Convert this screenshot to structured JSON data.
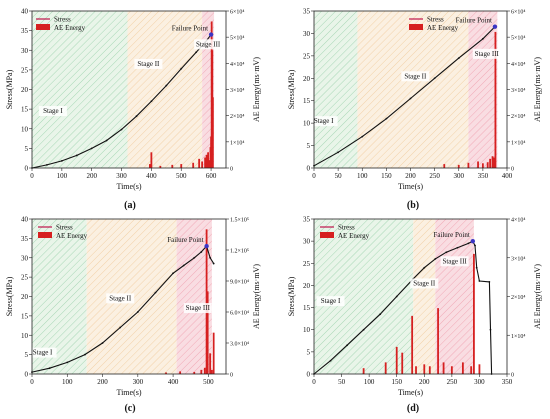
{
  "chart_data": [
    {
      "panel": "(a)",
      "type": "line",
      "xlabel": "Time(s)",
      "ylabel": "Stress(MPa)",
      "y2label": "AE Energy(ms·mV)",
      "xlim": [
        0,
        650
      ],
      "ylim": [
        0,
        40
      ],
      "y2lim": [
        0,
        60000
      ],
      "xticks": [
        0,
        100,
        200,
        300,
        400,
        500,
        600
      ],
      "yticks": [
        0,
        5,
        10,
        15,
        20,
        25,
        30,
        35,
        40
      ],
      "y2ticks": [
        {
          "v": 0,
          "t": "0"
        },
        {
          "v": 10000,
          "t": "1×10⁴"
        },
        {
          "v": 20000,
          "t": "2×10⁴"
        },
        {
          "v": 30000,
          "t": "3×10⁴"
        },
        {
          "v": 40000,
          "t": "4×10⁴"
        },
        {
          "v": 50000,
          "t": "5×10⁴"
        },
        {
          "v": 60000,
          "t": "6×10⁴"
        }
      ],
      "legend": [
        "Stress",
        "AE Energy"
      ],
      "stages": [
        {
          "label": "Stage I",
          "from": 0,
          "to": 320,
          "color": "green",
          "lx": 70,
          "ly": 14
        },
        {
          "label": "Stage II",
          "from": 320,
          "to": 570,
          "color": "orange",
          "lx": 390,
          "ly": 26
        },
        {
          "label": "Stage III",
          "from": 570,
          "to": 610,
          "color": "red",
          "lx": 590,
          "ly": 31
        }
      ],
      "failure": {
        "label": "Failure Point",
        "x": 600,
        "y": 34
      },
      "stress": [
        [
          0,
          0
        ],
        [
          50,
          0.8
        ],
        [
          100,
          1.8
        ],
        [
          150,
          3.2
        ],
        [
          200,
          5
        ],
        [
          250,
          7
        ],
        [
          300,
          9.8
        ],
        [
          350,
          13.2
        ],
        [
          400,
          17
        ],
        [
          450,
          21
        ],
        [
          500,
          25.3
        ],
        [
          550,
          29.5
        ],
        [
          580,
          32
        ],
        [
          600,
          34
        ]
      ],
      "energy": [
        [
          395,
          1500
        ],
        [
          400,
          6000
        ],
        [
          430,
          800
        ],
        [
          470,
          1200
        ],
        [
          500,
          1500
        ],
        [
          540,
          2000
        ],
        [
          560,
          3500
        ],
        [
          570,
          2500
        ],
        [
          580,
          4000
        ],
        [
          585,
          5000
        ],
        [
          590,
          6000
        ],
        [
          595,
          3000
        ],
        [
          598,
          8000
        ],
        [
          600,
          12000
        ],
        [
          602,
          56000
        ],
        [
          604,
          45000
        ],
        [
          606,
          27000
        ]
      ]
    },
    {
      "panel": "(b)",
      "type": "line",
      "xlabel": "Time(s)",
      "ylabel": "Stress(MPa)",
      "y2label": "AE Energy(ms·mV)",
      "xlim": [
        0,
        400
      ],
      "ylim": [
        0,
        35
      ],
      "y2lim": [
        0,
        60000
      ],
      "xticks": [
        0,
        50,
        100,
        150,
        200,
        250,
        300,
        350,
        400
      ],
      "yticks": [
        0,
        5,
        10,
        15,
        20,
        25,
        30,
        35
      ],
      "y2ticks": [
        {
          "v": 0,
          "t": "0"
        },
        {
          "v": 10000,
          "t": "1×10⁴"
        },
        {
          "v": 20000,
          "t": "2×10⁴"
        },
        {
          "v": 30000,
          "t": "3×10⁴"
        },
        {
          "v": 40000,
          "t": "4×10⁴"
        },
        {
          "v": 50000,
          "t": "5×10⁴"
        },
        {
          "v": 60000,
          "t": "6×10⁴"
        }
      ],
      "legend": [
        "Stress",
        "AE Energy"
      ],
      "stages": [
        {
          "label": "Stage I",
          "from": 0,
          "to": 90,
          "color": "green",
          "lx": 20,
          "ly": 10
        },
        {
          "label": "Stage II",
          "from": 90,
          "to": 320,
          "color": "orange",
          "lx": 210,
          "ly": 20
        },
        {
          "label": "Stage III",
          "from": 320,
          "to": 380,
          "color": "red",
          "lx": 358,
          "ly": 25
        }
      ],
      "failure": {
        "label": "Failure Point",
        "x": 375,
        "y": 31.5
      },
      "stress": [
        [
          0,
          0.5
        ],
        [
          50,
          3.5
        ],
        [
          100,
          7
        ],
        [
          150,
          11
        ],
        [
          200,
          15.5
        ],
        [
          250,
          20
        ],
        [
          300,
          24.5
        ],
        [
          350,
          28.8
        ],
        [
          375,
          31.5
        ]
      ],
      "energy": [
        [
          270,
          1500
        ],
        [
          300,
          1200
        ],
        [
          320,
          2000
        ],
        [
          340,
          2500
        ],
        [
          350,
          1800
        ],
        [
          360,
          2200
        ],
        [
          365,
          3500
        ],
        [
          370,
          4500
        ],
        [
          373,
          4000
        ],
        [
          376,
          52000
        ]
      ]
    },
    {
      "panel": "(c)",
      "type": "line",
      "xlabel": "Time(s)",
      "ylabel": "Stress(MPa)",
      "y2label": "AE Energy(ms·mV)",
      "xlim": [
        0,
        550
      ],
      "ylim": [
        0,
        40
      ],
      "y2lim": [
        0,
        150000
      ],
      "xticks": [
        0,
        100,
        200,
        300,
        400,
        500
      ],
      "yticks": [
        0,
        5,
        10,
        15,
        20,
        25,
        30,
        35,
        40
      ],
      "y2ticks": [
        {
          "v": 0,
          "t": "0"
        },
        {
          "v": 30000,
          "t": "3.0×10⁴"
        },
        {
          "v": 60000,
          "t": "6.0×10⁴"
        },
        {
          "v": 90000,
          "t": "9.0×10⁴"
        },
        {
          "v": 120000,
          "t": "1.2×10⁵"
        },
        {
          "v": 150000,
          "t": "1.5×10⁵"
        }
      ],
      "legend": [
        "Stress",
        "AE Energy"
      ],
      "stages": [
        {
          "label": "Stage I",
          "from": 0,
          "to": 155,
          "color": "green",
          "lx": 30,
          "ly": 5
        },
        {
          "label": "Stage II",
          "from": 155,
          "to": 410,
          "color": "orange",
          "lx": 250,
          "ly": 19
        },
        {
          "label": "Stage III",
          "from": 410,
          "to": 510,
          "color": "red",
          "lx": 470,
          "ly": 16.5
        }
      ],
      "failure": {
        "label": "Failure Point",
        "x": 495,
        "y": 33
      },
      "stress": [
        [
          0,
          0.5
        ],
        [
          50,
          1.5
        ],
        [
          100,
          3
        ],
        [
          150,
          5
        ],
        [
          200,
          8
        ],
        [
          250,
          12
        ],
        [
          300,
          16
        ],
        [
          350,
          21
        ],
        [
          400,
          26
        ],
        [
          430,
          28
        ],
        [
          460,
          30
        ],
        [
          480,
          31.5
        ],
        [
          495,
          33
        ],
        [
          505,
          30
        ],
        [
          515,
          28.5
        ]
      ],
      "energy": [
        [
          380,
          1500
        ],
        [
          420,
          2500
        ],
        [
          460,
          2000
        ],
        [
          480,
          4000
        ],
        [
          490,
          6000
        ],
        [
          495,
          140000
        ],
        [
          498,
          80000
        ],
        [
          505,
          20000
        ],
        [
          510,
          4000
        ],
        [
          515,
          40000
        ]
      ]
    },
    {
      "panel": "(d)",
      "type": "line",
      "xlabel": "Time(s)",
      "ylabel": "Stress(MPa)",
      "y2label": "AE Energy(ms·mV)",
      "xlim": [
        0,
        350
      ],
      "ylim": [
        0,
        35
      ],
      "y2lim": [
        0,
        40000
      ],
      "xticks": [
        0,
        50,
        100,
        150,
        200,
        250,
        300,
        350
      ],
      "yticks": [
        0,
        5,
        10,
        15,
        20,
        25,
        30,
        35
      ],
      "y2ticks": [
        {
          "v": 0,
          "t": "0"
        },
        {
          "v": 10000,
          "t": "1×10⁴"
        },
        {
          "v": 20000,
          "t": "2×10⁴"
        },
        {
          "v": 30000,
          "t": "3×10⁴"
        },
        {
          "v": 40000,
          "t": "4×10⁴"
        }
      ],
      "legend": [
        "Stress",
        "AE Energy"
      ],
      "stages": [
        {
          "label": "Stage I",
          "from": 0,
          "to": 180,
          "color": "green",
          "lx": 30,
          "ly": 16
        },
        {
          "label": "Stage II",
          "from": 180,
          "to": 220,
          "color": "orange",
          "lx": 200,
          "ly": 20
        },
        {
          "label": "Stage III",
          "from": 220,
          "to": 290,
          "color": "red",
          "lx": 255,
          "ly": 25
        }
      ],
      "failure": {
        "label": "Failure Point",
        "x": 288,
        "y": 30
      },
      "stress": [
        [
          0,
          0
        ],
        [
          30,
          3
        ],
        [
          60,
          6.5
        ],
        [
          90,
          10
        ],
        [
          120,
          13.5
        ],
        [
          150,
          17.5
        ],
        [
          180,
          21.5
        ],
        [
          200,
          24
        ],
        [
          220,
          26
        ],
        [
          240,
          27.5
        ],
        [
          260,
          28.5
        ],
        [
          280,
          29.5
        ],
        [
          288,
          30
        ],
        [
          292,
          29
        ],
        [
          295,
          24
        ],
        [
          300,
          21
        ],
        [
          318,
          20.8
        ],
        [
          320,
          10
        ],
        [
          322,
          0
        ]
      ],
      "energy": [
        [
          90,
          1500
        ],
        [
          130,
          3000
        ],
        [
          150,
          7000
        ],
        [
          160,
          5500
        ],
        [
          178,
          15000
        ],
        [
          185,
          2000
        ],
        [
          200,
          2500
        ],
        [
          210,
          2000
        ],
        [
          225,
          17000
        ],
        [
          235,
          3000
        ],
        [
          250,
          2000
        ],
        [
          270,
          3000
        ],
        [
          285,
          2000
        ],
        [
          290,
          31000
        ],
        [
          300,
          2500
        ]
      ]
    }
  ]
}
